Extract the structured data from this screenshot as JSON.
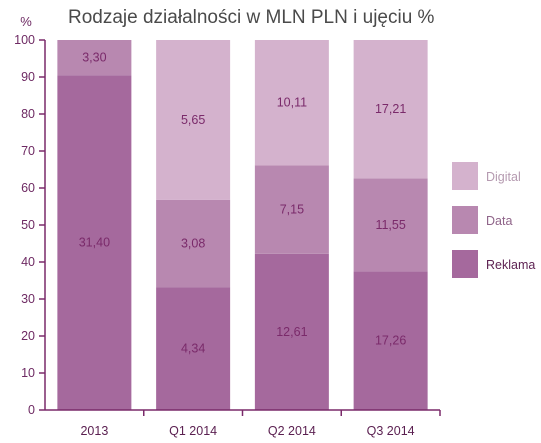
{
  "chart_data": {
    "type": "bar",
    "stacked": true,
    "normalized_percent": true,
    "title": "Rodzaje działalności w MLN PLN i ujęciu %",
    "yunit": "%",
    "ylim": [
      0,
      100
    ],
    "yticks": [
      0,
      10,
      20,
      30,
      40,
      50,
      60,
      70,
      80,
      90,
      100
    ],
    "categories": [
      "2013",
      "Q1 2014",
      "Q2 2014",
      "Q3 2014"
    ],
    "series": [
      {
        "name": "Reklama",
        "values": [
          31.4,
          4.34,
          12.61,
          17.26
        ],
        "labels": [
          "31,40",
          "4,34",
          "12,61",
          "17,26"
        ],
        "color": "#a5699d"
      },
      {
        "name": "Data",
        "values": [
          3.3,
          3.08,
          7.15,
          11.55
        ],
        "labels": [
          "3,30",
          "3,08",
          "7,15",
          "11,55"
        ],
        "color": "#b888b0"
      },
      {
        "name": "Digital",
        "values": [
          0,
          5.65,
          10.11,
          17.21
        ],
        "labels": [
          "",
          "5,65",
          "10,11",
          "17,21"
        ],
        "color": "#d4b2cd"
      }
    ],
    "legend": {
      "placement": "right",
      "order": [
        "Digital",
        "Data",
        "Reklama"
      ]
    },
    "colors": {
      "axis": "#7a2a6a",
      "tick_text": "#6e2a63",
      "label_text": "#7a2a6a",
      "legend_digital_text": "#b59ab0",
      "legend_data_text": "#8f6489",
      "legend_reklama_text": "#5e2353"
    }
  }
}
